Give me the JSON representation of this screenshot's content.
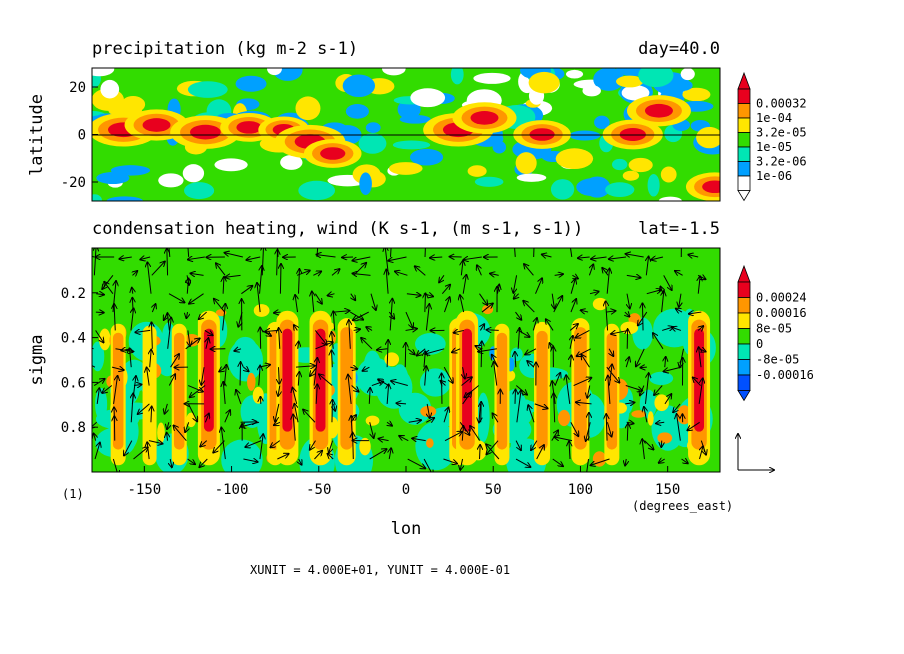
{
  "chart_data": [
    {
      "type": "heatmap",
      "title": "precipitation (kg m-2 s-1)",
      "time_label": "day=40.0",
      "ylabel": "latitude",
      "xlim": [
        -180,
        180
      ],
      "ylim": [
        -28,
        28
      ],
      "yticks": [
        20,
        0,
        -20
      ],
      "colorbar": {
        "labels": [
          "0.00032",
          "1e-04",
          "3.2e-05",
          "1e-05",
          "3.2e-06",
          "1e-06"
        ],
        "colors": [
          "#e8001e",
          "#ff9600",
          "#ffe600",
          "#32dc00",
          "#00e6b4",
          "#00a0ff",
          "#ffffff"
        ]
      },
      "features": [
        {
          "lon": -162,
          "lat": 2,
          "value": 0.0003
        },
        {
          "lon": -143,
          "lat": 4,
          "value": 0.00025
        },
        {
          "lon": -115,
          "lat": 1,
          "value": 0.0003
        },
        {
          "lon": -90,
          "lat": 3,
          "value": 0.0002
        },
        {
          "lon": -70,
          "lat": 2,
          "value": 0.00015
        },
        {
          "lon": -55,
          "lat": -3,
          "value": 0.0003
        },
        {
          "lon": -42,
          "lat": -8,
          "value": 0.0002
        },
        {
          "lon": 30,
          "lat": 2,
          "value": 0.0003
        },
        {
          "lon": 45,
          "lat": 7,
          "value": 0.00025
        },
        {
          "lon": 78,
          "lat": 0,
          "value": 0.0002
        },
        {
          "lon": 130,
          "lat": 0,
          "value": 0.00022
        },
        {
          "lon": 145,
          "lat": 10,
          "value": 0.00025
        },
        {
          "lon": 177,
          "lat": -22,
          "value": 0.0002
        }
      ]
    },
    {
      "type": "heatmap",
      "title": "condensation heating, wind (K s-1, (m s-1, s-1))",
      "lat_label": "lat=-1.5",
      "xlabel": "lon",
      "ylabel": "sigma",
      "xunits": "(degrees_east)",
      "panel_tag": "(1)",
      "xlim": [
        -180,
        180
      ],
      "ylim": [
        1.0,
        0.0
      ],
      "xticks": [
        -150,
        -100,
        -50,
        0,
        50,
        100,
        150
      ],
      "yticks": [
        0.2,
        0.4,
        0.6,
        0.8
      ],
      "colorbar": {
        "labels": [
          "0.00024",
          "0.00016",
          "8e-05",
          "0",
          "-8e-05",
          "-0.00016"
        ],
        "colors": [
          "#e8001e",
          "#ff9600",
          "#ffe600",
          "#32dc00",
          "#00e6b4",
          "#00a0ff",
          "#0050ff"
        ]
      },
      "heating_columns": [
        {
          "lon": -165,
          "value": 0.0001
        },
        {
          "lon": -147,
          "value": 8e-05
        },
        {
          "lon": -130,
          "value": 0.0001
        },
        {
          "lon": -113,
          "value": 0.00024
        },
        {
          "lon": -75,
          "value": 0.00012
        },
        {
          "lon": -68,
          "value": 0.00024
        },
        {
          "lon": -49,
          "value": 0.00024
        },
        {
          "lon": -34,
          "value": 0.00016
        },
        {
          "lon": 30,
          "value": 0.00016
        },
        {
          "lon": 35,
          "value": 0.00024
        },
        {
          "lon": 55,
          "value": 0.0001
        },
        {
          "lon": 78,
          "value": 0.00012
        },
        {
          "lon": 100,
          "value": 0.00016
        },
        {
          "lon": 118,
          "value": 0.0001
        },
        {
          "lon": 168,
          "value": 0.00024
        }
      ],
      "vector_reference": {
        "xunit_text": "XUNIT = 4.000E+01, YUNIT = 4.000E-01"
      }
    }
  ]
}
